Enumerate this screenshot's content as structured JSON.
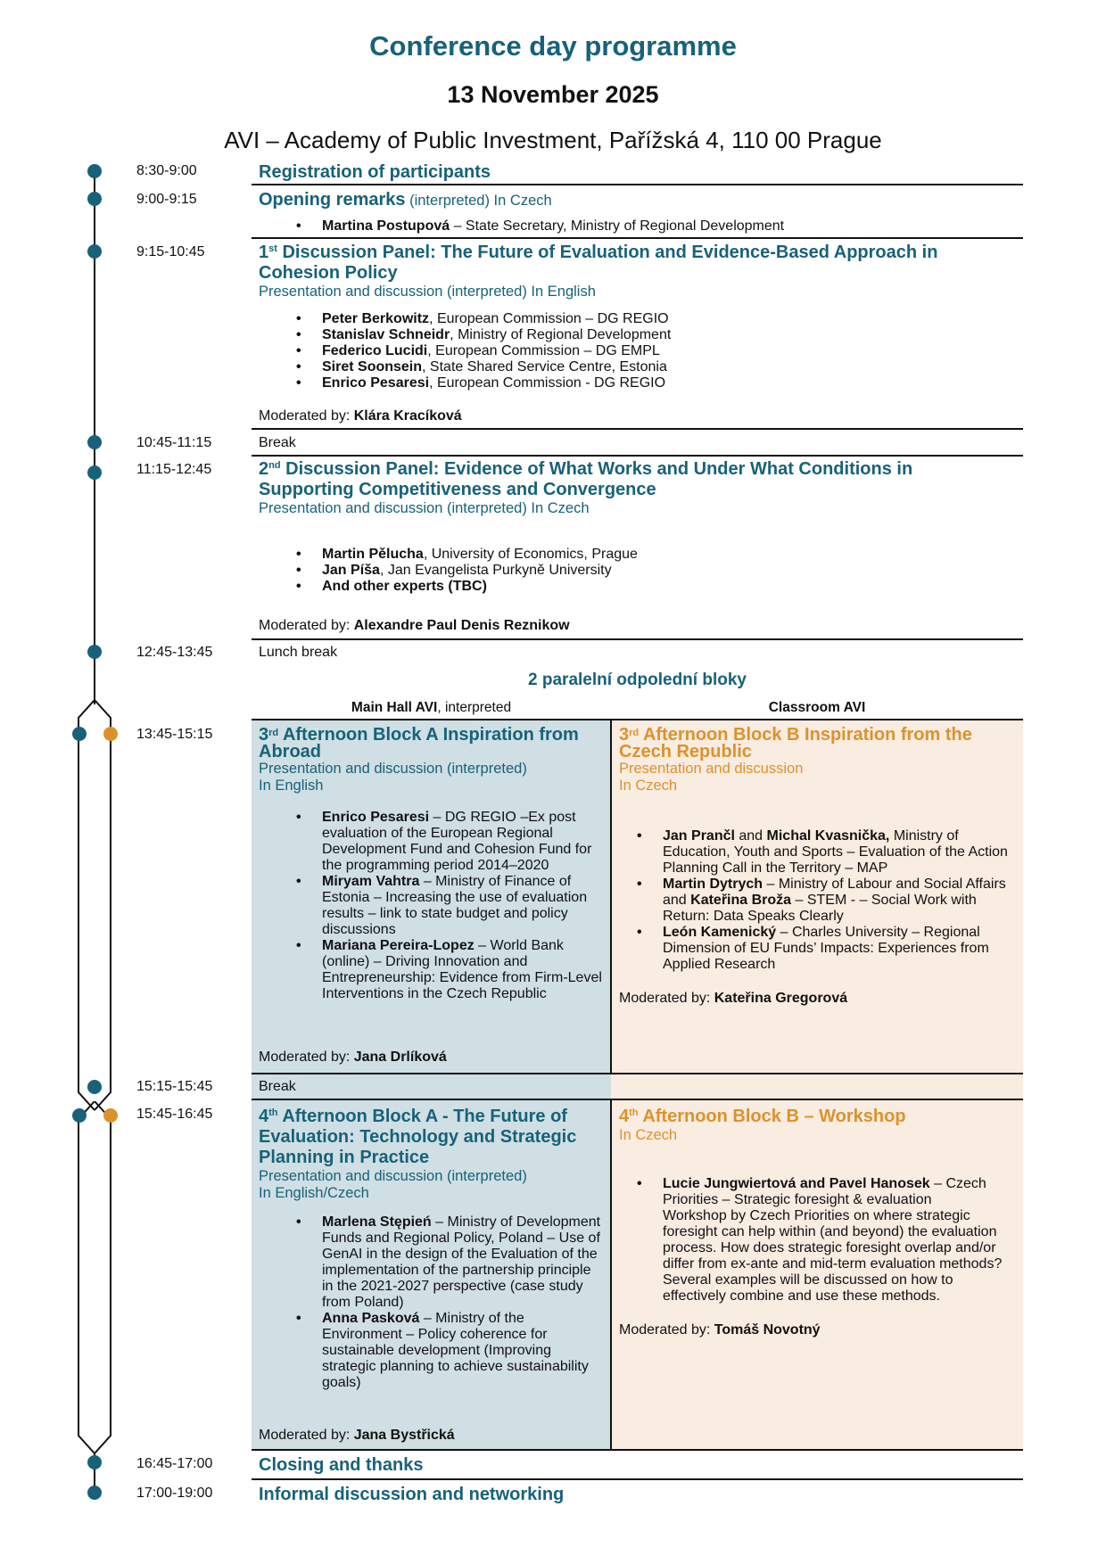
{
  "header": {
    "title": "Conference day programme",
    "date": "13 November 2025",
    "venue": "AVI – Academy of Public Investment, Pařížská 4, 110 00 Prague"
  },
  "colors": {
    "teal": "#17627a",
    "orange": "#dc922c",
    "block_a_bg": "#cfdfe4",
    "block_b_bg": "#f9ece0"
  },
  "registration": {
    "time": "8:30-9:00",
    "title": "Registration of participants"
  },
  "opening": {
    "time": "9:00-9:15",
    "title": "Opening remarks",
    "note": " (interpreted) In Czech",
    "speaker_name": "Martina Postupová",
    "speaker_rest": " – State Secretary, Ministry of Regional Development"
  },
  "panel1": {
    "time": "9:15-10:45",
    "ord": "1",
    "sup": "st",
    "title": " Discussion Panel: The Future of Evaluation and Evidence-Based Approach in Cohesion Policy",
    "sub": "Presentation and discussion (interpreted) In English",
    "speakers": [
      {
        "name": "Peter Berkowitz",
        "rest": ", European Commission – DG REGIO"
      },
      {
        "name": "Stanislav Schneidr",
        "rest": ", Ministry of Regional Development"
      },
      {
        "name": "Federico Lucidi",
        "rest": ", European Commission – DG EMPL"
      },
      {
        "name": "Siret Soonsein",
        "rest": ", State Shared Service Centre, Estonia"
      },
      {
        "name": "Enrico Pesaresi",
        "rest": ", European Commission - DG REGIO"
      }
    ],
    "mod_label": "Moderated by: ",
    "moderator": "Klára Kracíková"
  },
  "break1": {
    "time": "10:45-11:15",
    "label": "Break"
  },
  "panel2": {
    "time": "11:15-12:45",
    "ord": "2",
    "sup": "nd",
    "title": " Discussion Panel: Evidence of What Works and Under What Conditions in Supporting Competitiveness and Convergence",
    "sub": "Presentation and discussion (interpreted) In Czech",
    "speakers": [
      {
        "name": "Martin Pělucha",
        "rest": ", University of Economics, Prague"
      },
      {
        "name": "Jan Píša",
        "rest": ", Jan Evangelista Purkyně University"
      },
      {
        "name": "And other experts (TBC)",
        "rest": ""
      }
    ],
    "mod_label": "Moderated by: ",
    "moderator": "Alexandre Paul Denis Reznikow"
  },
  "lunch": {
    "time": "12:45-13:45",
    "label": "Lunch break"
  },
  "parallel": {
    "heading": "2 paralelní odpolední bloky",
    "col_a_bold": "Main Hall AVI",
    "col_a_rest": ", interpreted",
    "col_b": "Classroom AVI"
  },
  "block3": {
    "time": "13:45-15:15",
    "a": {
      "ord": "3",
      "sup": "rd",
      "title": " Afternoon Block A Inspiration from Abroad",
      "sub1": "Presentation and discussion (interpreted)",
      "sub2": "In English",
      "speakers": [
        {
          "name": "Enrico Pesaresi",
          "rest": " – DG REGIO –Ex post evaluation of the European Regional Development Fund and Cohesion Fund for the programming period 2014–2020"
        },
        {
          "name": "Miryam Vahtra",
          "rest": " – Ministry of Finance of Estonia – Increasing the use of evaluation results – link to state budget and policy discussions"
        },
        {
          "name": "Mariana Pereira-Lopez",
          "rest": " – World Bank (online) – Driving Innovation and Entrepreneurship: Evidence from Firm-Level Interventions in the Czech Republic"
        }
      ],
      "mod_label": "Moderated by: ",
      "moderator": "Jana Drlíková"
    },
    "b": {
      "ord": "3",
      "sup": "rd",
      "title": " Afternoon Block B Inspiration from the Czech Republic",
      "sub1": "Presentation and discussion",
      "sub2": "In Czech",
      "s1_name1": "Jan Prančl",
      "s1_and": " and ",
      "s1_name2": "Michal Kvasnička,",
      "s1_rest": " Ministry of Education, Youth and Sports – Evaluation of the Action Planning Call in the Territory – MAP",
      "s2_name1": "Martin Dytrych",
      "s2_mid": " – Ministry of Labour and Social Affairs and ",
      "s2_name2": "Kateřina Broža",
      "s2_rest": " – STEM - – Social Work with Return: Data Speaks Clearly",
      "s3_name": "León Kamenický",
      "s3_rest": " – Charles University – Regional Dimension of EU Funds’ Impacts: Experiences from Applied Research",
      "mod_label": "Moderated by: ",
      "moderator": "Kateřina Gregorová"
    }
  },
  "break2": {
    "time": "15:15-15:45",
    "label": "Break"
  },
  "block4": {
    "time": "15:45-16:45",
    "a": {
      "ord": "4",
      "sup": "th",
      "title": " Afternoon Block A - The Future of Evaluation: Technology and Strategic Planning in Practice",
      "sub1": "Presentation and discussion (interpreted)",
      "sub2": "In English/Czech",
      "speakers": [
        {
          "name": "Marlena Stępień",
          "rest": " – Ministry of Development Funds and Regional Policy, Poland – Use of GenAI in the design of the Evaluation of the implementation of the partnership principle in the 2021-2027 perspective (case study from Poland)"
        },
        {
          "name": "Anna Pasková",
          "rest": " – Ministry of the Environment – Policy coherence for sustainable development (Improving strategic planning to achieve sustainability goals)"
        }
      ],
      "mod_label": "Moderated by: ",
      "moderator": "Jana Bystřická"
    },
    "b": {
      "ord": "4",
      "sup": "th",
      "title": " Afternoon Block B – Workshop",
      "sub1": "In Czech",
      "s_name": "Lucie Jungwiertová and Pavel Hanosek",
      "s_rest": " – Czech Priorities – Strategic foresight & evaluation",
      "s_desc": "Workshop by Czech Priorities on where strategic foresight can help within (and beyond) the evaluation process. How does strategic foresight overlap and/or differ from ex-ante and mid-term evaluation methods? Several examples will be discussed on how to effectively combine and use these methods.",
      "mod_label": "Moderated by: ",
      "moderator": "Tomáš Novotný"
    }
  },
  "closing": {
    "time": "16:45-17:00",
    "title": "Closing and thanks"
  },
  "networking": {
    "time": "17:00-19:00",
    "title": "Informal discussion and networking"
  }
}
